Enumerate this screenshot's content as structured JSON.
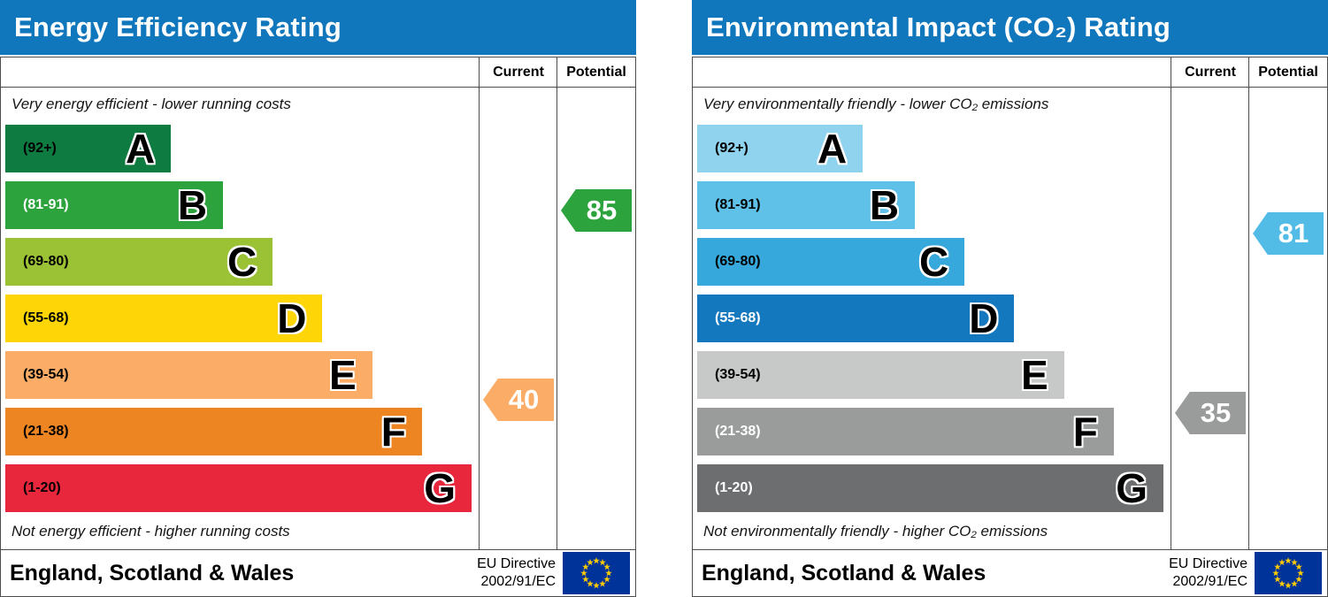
{
  "chart_data": [
    {
      "type": "bar",
      "title": "Energy Efficiency Rating",
      "categories": [
        "A (92+)",
        "B (81-91)",
        "C (69-80)",
        "D (55-68)",
        "E (39-54)",
        "F (21-38)",
        "G (1-20)"
      ],
      "series": [
        {
          "name": "Current",
          "values": [
            40
          ],
          "band": "E"
        },
        {
          "name": "Potential",
          "values": [
            85
          ],
          "band": "B"
        }
      ],
      "top_note": "Very energy efficient - lower running costs",
      "bottom_note": "Not energy efficient - higher running costs",
      "footer_note": "England, Scotland & Wales — EU Directive 2002/91/EC",
      "ylim": [
        1,
        100
      ]
    },
    {
      "type": "bar",
      "title": "Environmental Impact (CO₂) Rating",
      "categories": [
        "A (92+)",
        "B (81-91)",
        "C (69-80)",
        "D (55-68)",
        "E (39-54)",
        "F (21-38)",
        "G (1-20)"
      ],
      "series": [
        {
          "name": "Current",
          "values": [
            35
          ],
          "band": "F"
        },
        {
          "name": "Potential",
          "values": [
            81
          ],
          "band": "B"
        }
      ],
      "top_note": "Very environmentally friendly - lower CO₂ emissions",
      "bottom_note": "Not environmentally friendly - higher CO₂ emissions",
      "footer_note": "England, Scotland & Wales — EU Directive 2002/91/EC",
      "ylim": [
        1,
        100
      ]
    }
  ],
  "panels": [
    {
      "title": "Energy Efficiency Rating",
      "columns": {
        "current": "Current",
        "potential": "Potential"
      },
      "captions": {
        "top": "Very energy efficient - lower running costs",
        "bottom": "Not energy efficient - higher running costs"
      },
      "bands": [
        {
          "letter": "A",
          "range": "(92+)",
          "color": "#0e7c40",
          "width": "35%",
          "label_color": "#000000"
        },
        {
          "letter": "B",
          "range": "(81-91)",
          "color": "#2ca33d",
          "width": "46%",
          "label_color": "#ffffff"
        },
        {
          "letter": "C",
          "range": "(69-80)",
          "color": "#9bc234",
          "width": "56.5%",
          "label_color": "#000000"
        },
        {
          "letter": "D",
          "range": "(55-68)",
          "color": "#fed608",
          "width": "67%",
          "label_color": "#000000"
        },
        {
          "letter": "E",
          "range": "(39-54)",
          "color": "#fbad68",
          "width": "77.5%",
          "label_color": "#000000"
        },
        {
          "letter": "F",
          "range": "(21-38)",
          "color": "#ee8523",
          "width": "88%",
          "label_color": "#000000"
        },
        {
          "letter": "G",
          "range": "(1-20)",
          "color": "#e8273d",
          "width": "98.5%",
          "label_color": "#000000"
        }
      ],
      "markers": {
        "current": {
          "label": "Current",
          "value": 40,
          "band_index": 4,
          "color": "#fbad68"
        },
        "potential": {
          "label": "Potential",
          "value": 85,
          "band_index": 1,
          "color": "#2ca33d"
        }
      },
      "footer": {
        "region": "England, Scotland & Wales",
        "directive_line1": "EU Directive",
        "directive_line2": "2002/91/EC"
      }
    },
    {
      "title": "Environmental Impact (CO₂) Rating",
      "columns": {
        "current": "Current",
        "potential": "Potential"
      },
      "captions": {
        "top": "Very environmentally friendly - lower CO₂ emissions",
        "bottom": "Not environmentally friendly - higher CO₂ emissions"
      },
      "bands": [
        {
          "letter": "A",
          "range": "(92+)",
          "color": "#90d3ee",
          "width": "35%",
          "label_color": "#000000"
        },
        {
          "letter": "B",
          "range": "(81-91)",
          "color": "#5fc0e8",
          "width": "46%",
          "label_color": "#000000"
        },
        {
          "letter": "C",
          "range": "(69-80)",
          "color": "#36a8db",
          "width": "56.5%",
          "label_color": "#000000"
        },
        {
          "letter": "D",
          "range": "(55-68)",
          "color": "#1478be",
          "width": "67%",
          "label_color": "#ffffff"
        },
        {
          "letter": "E",
          "range": "(39-54)",
          "color": "#c6c9c7",
          "width": "77.5%",
          "label_color": "#000000"
        },
        {
          "letter": "F",
          "range": "(21-38)",
          "color": "#9a9c9b",
          "width": "88%",
          "label_color": "#ffffff"
        },
        {
          "letter": "G",
          "range": "(1-20)",
          "color": "#6c6e70",
          "width": "98.5%",
          "label_color": "#ffffff"
        }
      ],
      "markers": {
        "current": {
          "label": "Current",
          "value": 35,
          "band_index": 5,
          "color": "#9a9c9b"
        },
        "potential": {
          "label": "Potential",
          "value": 81,
          "band_index": 1,
          "color": "#52bbe6"
        }
      },
      "footer": {
        "region": "England, Scotland & Wales",
        "directive_line1": "EU Directive",
        "directive_line2": "2002/91/EC"
      }
    }
  ]
}
